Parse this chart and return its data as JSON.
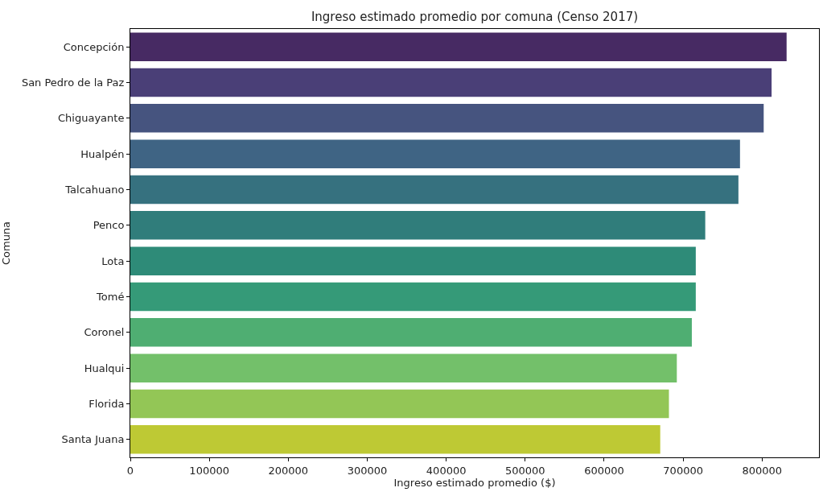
{
  "chart_data": {
    "type": "bar",
    "orientation": "horizontal",
    "title": "Ingreso estimado promedio por comuna (Censo 2017)",
    "xlabel": "Ingreso estimado promedio ($)",
    "ylabel": "Comuna",
    "categories": [
      "Concepción",
      "San Pedro de la Paz",
      "Chiguayante",
      "Hualpén",
      "Talcahuano",
      "Penco",
      "Lota",
      "Tomé",
      "Coronel",
      "Hualqui",
      "Florida",
      "Santa Juana"
    ],
    "values": [
      831000,
      812000,
      802000,
      772000,
      770000,
      728000,
      716000,
      716000,
      711000,
      692000,
      682000,
      671000
    ],
    "colors": [
      "#472a63",
      "#4a3f77",
      "#46547f",
      "#3f6484",
      "#36717f",
      "#307d7b",
      "#2e8b78",
      "#359a78",
      "#4fae72",
      "#73c06a",
      "#93c656",
      "#bec934"
    ],
    "xlim": [
      0,
      872000
    ],
    "xticks": [
      0,
      100000,
      200000,
      300000,
      400000,
      500000,
      600000,
      700000,
      800000
    ],
    "grid": false
  }
}
